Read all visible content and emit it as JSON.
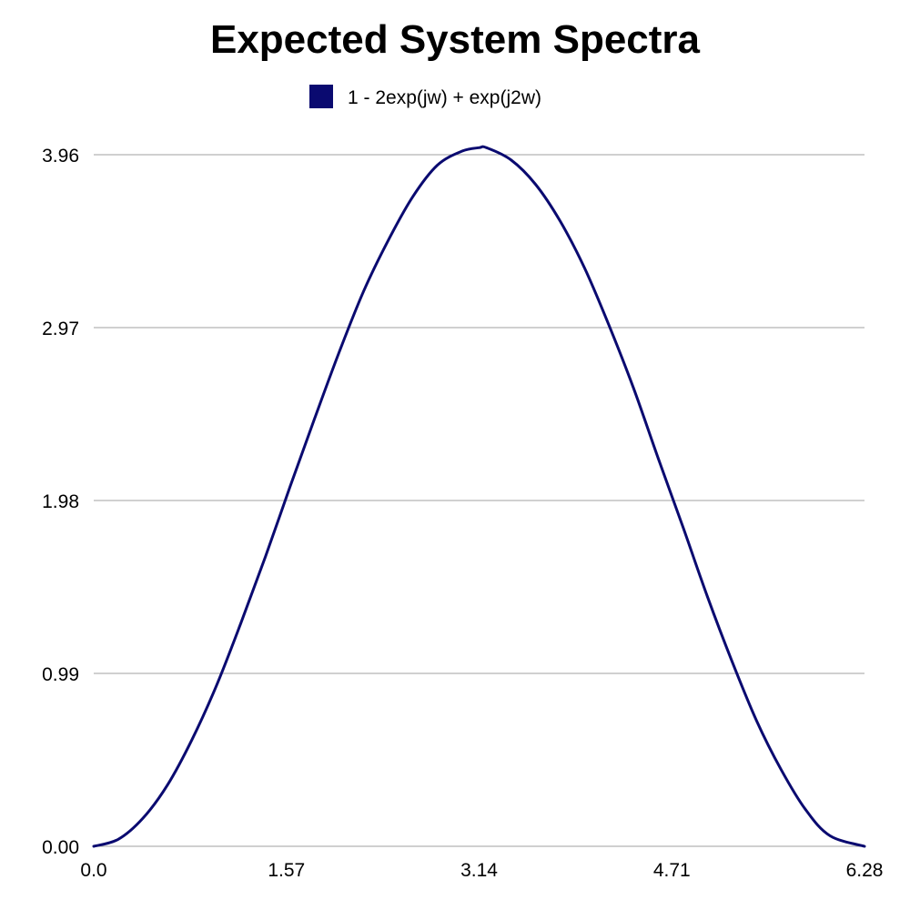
{
  "chart_data": {
    "type": "line",
    "title": "Expected System Spectra",
    "xlabel": "",
    "ylabel": "",
    "x_ticks": [
      "0.0",
      "1.57",
      "3.14",
      "4.71",
      "6.28"
    ],
    "y_ticks": [
      "0.00",
      "0.99",
      "1.98",
      "2.97",
      "3.96"
    ],
    "xlim": [
      0,
      6.28
    ],
    "ylim": [
      0,
      3.96
    ],
    "grid": true,
    "legend_position": "top-center",
    "series": [
      {
        "name": "1 - 2exp(jw) + exp(j2w)",
        "color": "#0a0a70",
        "x": [
          0.0,
          0.2,
          0.4,
          0.6,
          0.8,
          1.0,
          1.2,
          1.4,
          1.6,
          1.8,
          2.0,
          2.2,
          2.4,
          2.6,
          2.8,
          3.0,
          3.14,
          3.2,
          3.4,
          3.6,
          3.8,
          4.0,
          4.2,
          4.4,
          4.6,
          4.8,
          5.0,
          5.2,
          5.4,
          5.6,
          5.8,
          6.0,
          6.28
        ],
        "y": [
          0.0,
          0.04,
          0.16,
          0.35,
          0.61,
          0.92,
          1.28,
          1.66,
          2.06,
          2.45,
          2.83,
          3.18,
          3.47,
          3.72,
          3.9,
          3.98,
          4.0,
          4.0,
          3.93,
          3.79,
          3.58,
          3.31,
          2.98,
          2.62,
          2.22,
          1.83,
          1.43,
          1.06,
          0.72,
          0.44,
          0.21,
          0.06,
          0.0
        ]
      }
    ]
  }
}
